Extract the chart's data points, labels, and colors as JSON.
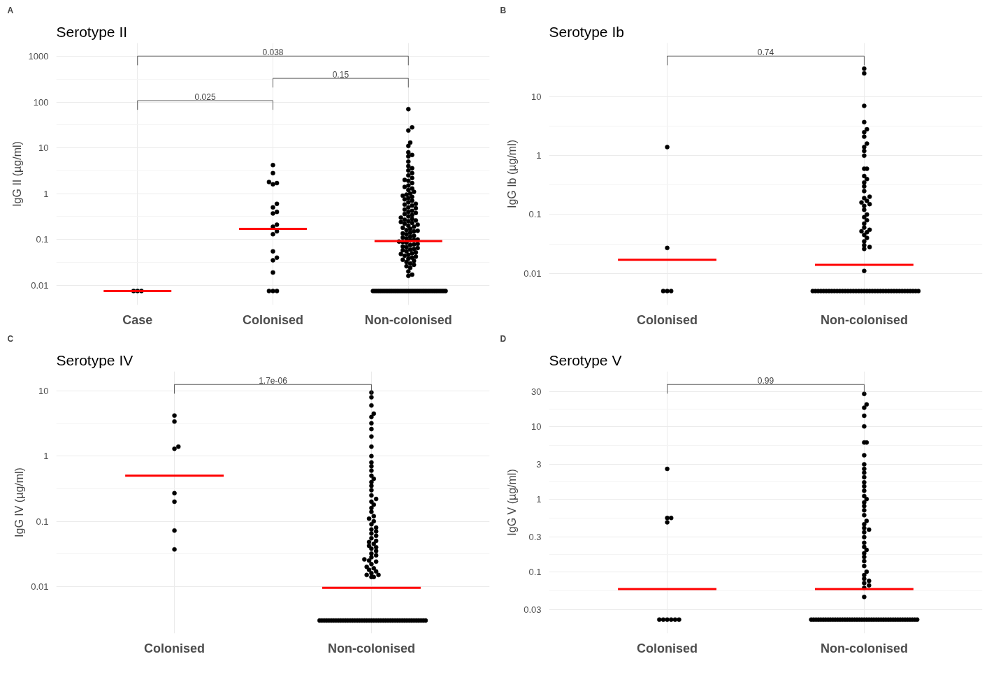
{
  "chart_data": [
    {
      "type": "scatter",
      "title": "Serotype II",
      "ylabel": "IgG II (µg/ml)",
      "categories": [
        "Case",
        "Colonised",
        "Non-colonised"
      ],
      "log": "y",
      "ylim": [
        0.0037,
        1950
      ],
      "yticks": [
        0.01,
        0.1,
        1,
        10,
        100,
        1000
      ],
      "grid": true,
      "marker": "circle",
      "annotations": [
        "A",
        "0.025",
        "0.15",
        "0.038"
      ],
      "series": [
        {
          "type": "scatter",
          "color": "#000000",
          "x": [
            "Case",
            "Case",
            "Case"
          ],
          "values": [
            0.0075,
            0.0075,
            0.0075
          ]
        },
        {
          "type": "scatter",
          "color": "#000000",
          "x": [
            "Colonised",
            "Colonised",
            "Colonised",
            "Colonised",
            "Colonised",
            "Colonised",
            "Colonised",
            "Colonised",
            "Colonised",
            "Colonised",
            "Colonised",
            "Colonised",
            "Colonised",
            "Colonised",
            "Colonised",
            "Colonised",
            "Colonised",
            "Colonised",
            "Colonised",
            "Colonised"
          ],
          "values": [
            4.2,
            2.8,
            1.8,
            1.7,
            1.6,
            0.6,
            0.5,
            0.4,
            0.37,
            0.21,
            0.19,
            0.15,
            0.13,
            0.055,
            0.04,
            0.035,
            0.019,
            0.0075,
            0.0075,
            0.0075
          ]
        },
        {
          "type": "scatter",
          "color": "#000000",
          "x": [
            "Non-colonised",
            "Non-colonised",
            "Non-colonised",
            "Non-colonised",
            "Non-colonised",
            "Non-colonised",
            "Non-colonised",
            "Non-colonised",
            "Non-colonised",
            "Non-colonised",
            "Non-colonised",
            "Non-colonised",
            "Non-colonised",
            "Non-colonised",
            "Non-colonised",
            "Non-colonised",
            "Non-colonised",
            "Non-colonised",
            "Non-colonised",
            "Non-colonised",
            "Non-colonised",
            "Non-colonised",
            "Non-colonised",
            "Non-colonised",
            "Non-colonised",
            "Non-colonised",
            "Non-colonised",
            "Non-colonised",
            "Non-colonised",
            "Non-colonised",
            "Non-colonised",
            "Non-colonised",
            "Non-colonised",
            "Non-colonised",
            "Non-colonised",
            "Non-colonised",
            "Non-colonised",
            "Non-colonised",
            "Non-colonised",
            "Non-colonised",
            "Non-colonised",
            "Non-colonised",
            "Non-colonised",
            "Non-colonised",
            "Non-colonised",
            "Non-colonised",
            "Non-colonised",
            "Non-colonised",
            "Non-colonised",
            "Non-colonised",
            "Non-colonised",
            "Non-colonised",
            "Non-colonised",
            "Non-colonised",
            "Non-colonised",
            "Non-colonised",
            "Non-colonised",
            "Non-colonised",
            "Non-colonised",
            "Non-colonised",
            "Non-colonised",
            "Non-colonised",
            "Non-colonised",
            "Non-colonised",
            "Non-colonised",
            "Non-colonised",
            "Non-colonised",
            "Non-colonised",
            "Non-colonised",
            "Non-colonised",
            "Non-colonised",
            "Non-colonised",
            "Non-colonised",
            "Non-colonised",
            "Non-colonised",
            "Non-colonised",
            "Non-colonised",
            "Non-colonised",
            "Non-colonised",
            "Non-colonised",
            "Non-colonised",
            "Non-colonised",
            "Non-colonised",
            "Non-colonised",
            "Non-colonised",
            "Non-colonised",
            "Non-colonised",
            "Non-colonised",
            "Non-colonised",
            "Non-colonised",
            "Non-colonised",
            "Non-colonised",
            "Non-colonised",
            "Non-colonised",
            "Non-colonised",
            "Non-colonised",
            "Non-colonised",
            "Non-colonised",
            "Non-colonised",
            "Non-colonised",
            "Non-colonised",
            "Non-colonised",
            "Non-colonised",
            "Non-colonised",
            "Non-colonised",
            "Non-colonised",
            "Non-colonised",
            "Non-colonised",
            "Non-colonised",
            "Non-colonised",
            "Non-colonised",
            "Non-colonised",
            "Non-colonised",
            "Non-colonised",
            "Non-colonised",
            "Non-colonised",
            "Non-colonised",
            "Non-colonised",
            "Non-colonised",
            "Non-colonised",
            "Non-colonised",
            "Non-colonised",
            "Non-colonised",
            "Non-colonised",
            "Non-colonised",
            "Non-colonised",
            "Non-colonised",
            "Non-colonised",
            "Non-colonised",
            "Non-colonised",
            "Non-colonised",
            "Non-colonised",
            "Non-colonised",
            "Non-colonised",
            "Non-colonised",
            "Non-colonised",
            "Non-colonised",
            "Non-colonised",
            "Non-colonised",
            "Non-colonised"
          ],
          "values": [
            70,
            28,
            24,
            13,
            11,
            8,
            7,
            6.5,
            5,
            4,
            3.6,
            3.2,
            2.8,
            2.5,
            2.2,
            2,
            1.9,
            1.7,
            1.5,
            1.4,
            1.3,
            1.2,
            1.1,
            1,
            0.95,
            0.9,
            0.85,
            0.8,
            0.75,
            0.7,
            0.65,
            0.6,
            0.58,
            0.55,
            0.5,
            0.48,
            0.45,
            0.42,
            0.4,
            0.38,
            0.36,
            0.34,
            0.32,
            0.3,
            0.28,
            0.27,
            0.26,
            0.25,
            0.24,
            0.23,
            0.22,
            0.21,
            0.2,
            0.19,
            0.18,
            0.17,
            0.16,
            0.155,
            0.15,
            0.14,
            0.135,
            0.13,
            0.12,
            0.115,
            0.11,
            0.105,
            0.1,
            0.098,
            0.095,
            0.09,
            0.088,
            0.085,
            0.08,
            0.078,
            0.075,
            0.07,
            0.068,
            0.065,
            0.062,
            0.06,
            0.058,
            0.055,
            0.052,
            0.05,
            0.048,
            0.046,
            0.044,
            0.042,
            0.04,
            0.038,
            0.036,
            0.034,
            0.032,
            0.03,
            0.028,
            0.026,
            0.024,
            0.02,
            0.017,
            0.016,
            0.0075,
            0.0075,
            0.0075,
            0.0075,
            0.0075,
            0.0075,
            0.0075,
            0.0075,
            0.0075,
            0.0075,
            0.0075,
            0.0075,
            0.0075,
            0.0075,
            0.0075,
            0.0075,
            0.0075,
            0.0075,
            0.0075,
            0.0075,
            0.0075,
            0.0075,
            0.0075,
            0.0075,
            0.0075,
            0.0075,
            0.0075,
            0.0075,
            0.0075,
            0.0075,
            0.0075,
            0.0075,
            0.0075,
            0.0075,
            0.0075,
            0.0075,
            0.0075,
            0.0075,
            0.0075,
            0.0075
          ]
        },
        {
          "type": "box",
          "color": "#ff0000",
          "boxes": [
            {
              "low": 0.0075,
              "q1": 0.0075,
              "median": 0.0075,
              "q3": 0.0075,
              "high": 0.0075
            },
            {
              "low": 0.17,
              "q1": 0.17,
              "median": 0.17,
              "q3": 0.17,
              "high": 0.17
            },
            {
              "low": 0.092,
              "q1": 0.092,
              "median": 0.092,
              "q3": 0.092,
              "high": 0.092
            }
          ]
        }
      ]
    },
    {
      "type": "scatter",
      "title": "Serotype Ib",
      "ylabel": "IgG Ib (µg/ml)",
      "categories": [
        "Colonised",
        "Non-colonised"
      ],
      "log": "y",
      "ylim": [
        0.0029,
        82
      ],
      "yticks": [
        0.01,
        0.1,
        1,
        10
      ],
      "grid": true,
      "marker": "circle",
      "annotations": [
        "B",
        "0.74"
      ],
      "series": [
        {
          "type": "scatter",
          "color": "#000000",
          "x": [
            "Colonised",
            "Colonised",
            "Colonised",
            "Colonised",
            "Colonised"
          ],
          "values": [
            1.4,
            0.027,
            0.005,
            0.005,
            0.005
          ]
        },
        {
          "type": "scatter",
          "color": "#000000",
          "x": [
            "Non-colonised",
            "Non-colonised",
            "Non-colonised",
            "Non-colonised",
            "Non-colonised",
            "Non-colonised",
            "Non-colonised",
            "Non-colonised",
            "Non-colonised",
            "Non-colonised",
            "Non-colonised",
            "Non-colonised",
            "Non-colonised",
            "Non-colonised",
            "Non-colonised",
            "Non-colonised",
            "Non-colonised",
            "Non-colonised",
            "Non-colonised",
            "Non-colonised",
            "Non-colonised",
            "Non-colonised",
            "Non-colonised",
            "Non-colonised",
            "Non-colonised",
            "Non-colonised",
            "Non-colonised",
            "Non-colonised",
            "Non-colonised",
            "Non-colonised",
            "Non-colonised",
            "Non-colonised",
            "Non-colonised",
            "Non-colonised",
            "Non-colonised",
            "Non-colonised",
            "Non-colonised",
            "Non-colonised",
            "Non-colonised",
            "Non-colonised",
            "Non-colonised",
            "Non-colonised",
            "Non-colonised",
            "Non-colonised",
            "Non-colonised",
            "Non-colonised",
            "Non-colonised",
            "Non-colonised",
            "Non-colonised",
            "Non-colonised",
            "Non-colonised",
            "Non-colonised",
            "Non-colonised",
            "Non-colonised",
            "Non-colonised",
            "Non-colonised",
            "Non-colonised",
            "Non-colonised",
            "Non-colonised",
            "Non-colonised",
            "Non-colonised",
            "Non-colonised",
            "Non-colonised",
            "Non-colonised",
            "Non-colonised",
            "Non-colonised",
            "Non-colonised",
            "Non-colonised",
            "Non-colonised",
            "Non-colonised",
            "Non-colonised",
            "Non-colonised",
            "Non-colonised",
            "Non-colonised",
            "Non-colonised",
            "Non-colonised",
            "Non-colonised",
            "Non-colonised",
            "Non-colonised",
            "Non-colonised"
          ],
          "values": [
            30,
            25,
            7,
            3.7,
            2.8,
            2.5,
            2.1,
            1.6,
            1.4,
            1.2,
            1,
            0.6,
            0.6,
            0.45,
            0.4,
            0.35,
            0.3,
            0.25,
            0.2,
            0.19,
            0.17,
            0.16,
            0.15,
            0.14,
            0.12,
            0.1,
            0.09,
            0.08,
            0.07,
            0.06,
            0.055,
            0.052,
            0.05,
            0.045,
            0.04,
            0.035,
            0.03,
            0.028,
            0.026,
            0.011,
            0.005,
            0.005,
            0.005,
            0.005,
            0.005,
            0.005,
            0.005,
            0.005,
            0.005,
            0.005,
            0.005,
            0.005,
            0.005,
            0.005,
            0.005,
            0.005,
            0.005,
            0.005,
            0.005,
            0.005,
            0.005,
            0.005,
            0.005,
            0.005,
            0.005,
            0.005,
            0.005,
            0.005,
            0.005,
            0.005,
            0.005,
            0.005,
            0.005,
            0.005,
            0.005,
            0.005,
            0.005,
            0.005,
            0.005,
            0.005
          ]
        },
        {
          "type": "box",
          "color": "#ff0000",
          "boxes": [
            {
              "low": 0.017,
              "q1": 0.017,
              "median": 0.017,
              "q3": 0.017,
              "high": 0.017
            },
            {
              "low": 0.014,
              "q1": 0.014,
              "median": 0.014,
              "q3": 0.014,
              "high": 0.014
            }
          ]
        }
      ]
    },
    {
      "type": "scatter",
      "title": "Serotype IV",
      "ylabel": "IgG IV (µg/ml)",
      "categories": [
        "Colonised",
        "Non-colonised"
      ],
      "log": "y",
      "ylim": [
        0.0019,
        20
      ],
      "yticks": [
        0.01,
        0.1,
        1,
        10
      ],
      "grid": true,
      "marker": "circle",
      "annotations": [
        "C",
        "1.7e-06"
      ],
      "series": [
        {
          "type": "scatter",
          "color": "#000000",
          "x": [
            "Colonised",
            "Colonised",
            "Colonised",
            "Colonised",
            "Colonised",
            "Colonised",
            "Colonised",
            "Colonised"
          ],
          "values": [
            4.2,
            3.4,
            1.4,
            1.3,
            0.27,
            0.2,
            0.072,
            0.037
          ]
        },
        {
          "type": "scatter",
          "color": "#000000",
          "x": [
            "Non-colonised",
            "Non-colonised",
            "Non-colonised",
            "Non-colonised",
            "Non-colonised",
            "Non-colonised",
            "Non-colonised",
            "Non-colonised",
            "Non-colonised",
            "Non-colonised",
            "Non-colonised",
            "Non-colonised",
            "Non-colonised",
            "Non-colonised",
            "Non-colonised",
            "Non-colonised",
            "Non-colonised",
            "Non-colonised",
            "Non-colonised",
            "Non-colonised",
            "Non-colonised",
            "Non-colonised",
            "Non-colonised",
            "Non-colonised",
            "Non-colonised",
            "Non-colonised",
            "Non-colonised",
            "Non-colonised",
            "Non-colonised",
            "Non-colonised",
            "Non-colonised",
            "Non-colonised",
            "Non-colonised",
            "Non-colonised",
            "Non-colonised",
            "Non-colonised",
            "Non-colonised",
            "Non-colonised",
            "Non-colonised",
            "Non-colonised",
            "Non-colonised",
            "Non-colonised",
            "Non-colonised",
            "Non-colonised",
            "Non-colonised",
            "Non-colonised",
            "Non-colonised",
            "Non-colonised",
            "Non-colonised",
            "Non-colonised",
            "Non-colonised",
            "Non-colonised",
            "Non-colonised",
            "Non-colonised",
            "Non-colonised",
            "Non-colonised",
            "Non-colonised",
            "Non-colonised",
            "Non-colonised",
            "Non-colonised",
            "Non-colonised",
            "Non-colonised",
            "Non-colonised",
            "Non-colonised",
            "Non-colonised",
            "Non-colonised",
            "Non-colonised",
            "Non-colonised",
            "Non-colonised",
            "Non-colonised",
            "Non-colonised",
            "Non-colonised",
            "Non-colonised",
            "Non-colonised",
            "Non-colonised",
            "Non-colonised",
            "Non-colonised",
            "Non-colonised",
            "Non-colonised",
            "Non-colonised",
            "Non-colonised",
            "Non-colonised",
            "Non-colonised",
            "Non-colonised",
            "Non-colonised",
            "Non-colonised",
            "Non-colonised",
            "Non-colonised",
            "Non-colonised",
            "Non-colonised",
            "Non-colonised",
            "Non-colonised",
            "Non-colonised",
            "Non-colonised",
            "Non-colonised",
            "Non-colonised",
            "Non-colonised",
            "Non-colonised",
            "Non-colonised",
            "Non-colonised",
            "Non-colonised",
            "Non-colonised",
            "Non-colonised"
          ],
          "values": [
            9.5,
            8,
            6,
            4.5,
            4,
            3.2,
            2.6,
            2,
            1.4,
            1,
            0.8,
            0.7,
            0.6,
            0.5,
            0.45,
            0.4,
            0.35,
            0.3,
            0.25,
            0.22,
            0.2,
            0.18,
            0.16,
            0.14,
            0.12,
            0.11,
            0.1,
            0.09,
            0.08,
            0.075,
            0.07,
            0.065,
            0.06,
            0.055,
            0.05,
            0.048,
            0.045,
            0.042,
            0.04,
            0.038,
            0.035,
            0.032,
            0.03,
            0.028,
            0.026,
            0.025,
            0.024,
            0.022,
            0.02,
            0.019,
            0.018,
            0.017,
            0.016,
            0.015,
            0.015,
            0.014,
            0.014,
            0.003,
            0.003,
            0.003,
            0.003,
            0.003,
            0.003,
            0.003,
            0.003,
            0.003,
            0.003,
            0.003,
            0.003,
            0.003,
            0.003,
            0.003,
            0.003,
            0.003,
            0.003,
            0.003,
            0.003,
            0.003,
            0.003,
            0.003,
            0.003,
            0.003,
            0.003,
            0.003,
            0.003,
            0.003,
            0.003,
            0.003,
            0.003,
            0.003,
            0.003,
            0.003,
            0.003,
            0.003,
            0.003,
            0.003,
            0.003,
            0.003,
            0.003,
            0.003,
            0.003,
            0.003,
            0.003
          ]
        },
        {
          "type": "box",
          "color": "#ff0000",
          "boxes": [
            {
              "low": 0.5,
              "q1": 0.5,
              "median": 0.5,
              "q3": 0.5,
              "high": 0.5
            },
            {
              "low": 0.0095,
              "q1": 0.0095,
              "median": 0.0095,
              "q3": 0.0095,
              "high": 0.0095
            }
          ]
        }
      ]
    },
    {
      "type": "scatter",
      "title": "Serotype V",
      "ylabel": "IgG V (µg/ml)",
      "categories": [
        "Colonised",
        "Non-colonised"
      ],
      "log": "y",
      "ylim": [
        0.0142,
        57
      ],
      "yticks": [
        0.03,
        0.1,
        0.3,
        1,
        3,
        10,
        30
      ],
      "grid": true,
      "marker": "circle",
      "annotations": [
        "D",
        "0.99"
      ],
      "series": [
        {
          "type": "scatter",
          "color": "#000000",
          "x": [
            "Colonised",
            "Colonised",
            "Colonised",
            "Colonised",
            "Colonised",
            "Colonised",
            "Colonised",
            "Colonised",
            "Colonised",
            "Colonised"
          ],
          "values": [
            2.6,
            0.55,
            0.55,
            0.48,
            0.022,
            0.022,
            0.022,
            0.022,
            0.022,
            0.022
          ]
        },
        {
          "type": "scatter",
          "color": "#000000",
          "x": [
            "Non-colonised",
            "Non-colonised",
            "Non-colonised",
            "Non-colonised",
            "Non-colonised",
            "Non-colonised",
            "Non-colonised",
            "Non-colonised",
            "Non-colonised",
            "Non-colonised",
            "Non-colonised",
            "Non-colonised",
            "Non-colonised",
            "Non-colonised",
            "Non-colonised",
            "Non-colonised",
            "Non-colonised",
            "Non-colonised",
            "Non-colonised",
            "Non-colonised",
            "Non-colonised",
            "Non-colonised",
            "Non-colonised",
            "Non-colonised",
            "Non-colonised",
            "Non-colonised",
            "Non-colonised",
            "Non-colonised",
            "Non-colonised",
            "Non-colonised",
            "Non-colonised",
            "Non-colonised",
            "Non-colonised",
            "Non-colonised",
            "Non-colonised",
            "Non-colonised",
            "Non-colonised",
            "Non-colonised",
            "Non-colonised",
            "Non-colonised",
            "Non-colonised",
            "Non-colonised",
            "Non-colonised",
            "Non-colonised",
            "Non-colonised",
            "Non-colonised",
            "Non-colonised",
            "Non-colonised",
            "Non-colonised",
            "Non-colonised",
            "Non-colonised",
            "Non-colonised",
            "Non-colonised",
            "Non-colonised",
            "Non-colonised",
            "Non-colonised",
            "Non-colonised",
            "Non-colonised",
            "Non-colonised",
            "Non-colonised",
            "Non-colonised",
            "Non-colonised",
            "Non-colonised",
            "Non-colonised",
            "Non-colonised",
            "Non-colonised",
            "Non-colonised",
            "Non-colonised",
            "Non-colonised",
            "Non-colonised",
            "Non-colonised",
            "Non-colonised",
            "Non-colonised",
            "Non-colonised",
            "Non-colonised",
            "Non-colonised",
            "Non-colonised",
            "Non-colonised",
            "Non-colonised",
            "Non-colonised",
            "Non-colonised",
            "Non-colonised",
            "Non-colonised",
            "Non-colonised",
            "Non-colonised",
            "Non-colonised",
            "Non-colonised"
          ],
          "values": [
            28,
            20,
            18,
            14,
            10,
            6,
            6,
            4,
            3,
            2.6,
            2.3,
            2,
            1.7,
            1.5,
            1.3,
            1.1,
            1,
            0.9,
            0.8,
            0.7,
            0.6,
            0.5,
            0.45,
            0.4,
            0.38,
            0.35,
            0.3,
            0.25,
            0.22,
            0.2,
            0.18,
            0.16,
            0.14,
            0.12,
            0.1,
            0.09,
            0.08,
            0.075,
            0.07,
            0.065,
            0.06,
            0.045,
            0.022,
            0.022,
            0.022,
            0.022,
            0.022,
            0.022,
            0.022,
            0.022,
            0.022,
            0.022,
            0.022,
            0.022,
            0.022,
            0.022,
            0.022,
            0.022,
            0.022,
            0.022,
            0.022,
            0.022,
            0.022,
            0.022,
            0.022,
            0.022,
            0.022,
            0.022,
            0.022,
            0.022,
            0.022,
            0.022,
            0.022,
            0.022,
            0.022,
            0.022,
            0.022,
            0.022,
            0.022,
            0.022,
            0.022,
            0.022,
            0.022,
            0.022,
            0.022,
            0.022,
            0.022
          ]
        },
        {
          "type": "box",
          "color": "#ff0000",
          "boxes": [
            {
              "low": 0.058,
              "q1": 0.058,
              "median": 0.058,
              "q3": 0.058,
              "high": 0.058
            },
            {
              "low": 0.058,
              "q1": 0.058,
              "median": 0.058,
              "q3": 0.058,
              "high": 0.058
            }
          ]
        }
      ]
    }
  ]
}
